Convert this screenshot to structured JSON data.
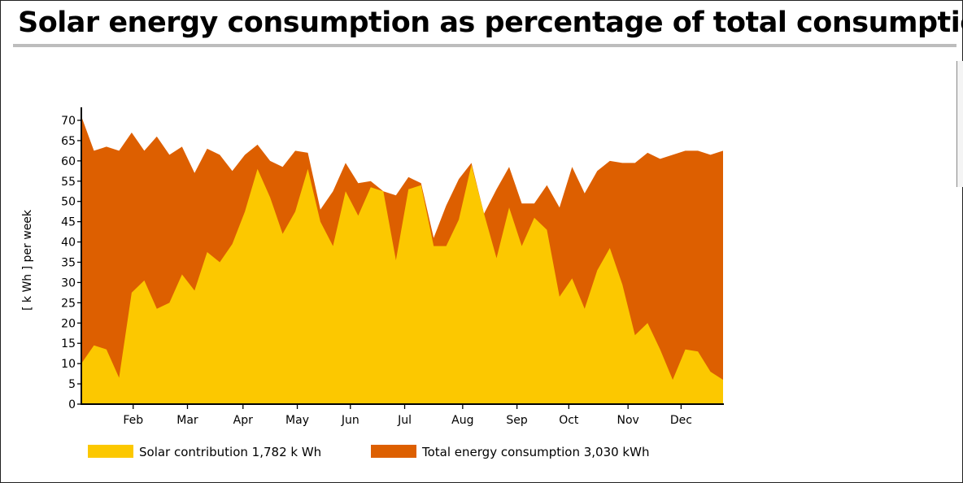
{
  "title": "Solar energy consumption as percentage of total consumption",
  "chart_data": {
    "type": "area",
    "title": "Solar energy consumption as percentage of total consumption",
    "xlabel": "",
    "ylabel": "[ k Wh ]  per week",
    "ylim": [
      0,
      70
    ],
    "yticks": [
      0,
      5,
      10,
      15,
      20,
      25,
      30,
      35,
      40,
      45,
      50,
      55,
      60,
      65,
      70
    ],
    "weeks": [
      1,
      53
    ],
    "month_ticks": [
      {
        "label": "Feb",
        "week": 5.2
      },
      {
        "label": "Mar",
        "week": 9.6
      },
      {
        "label": "Apr",
        "week": 14.1
      },
      {
        "label": "May",
        "week": 18.5
      },
      {
        "label": "Jun",
        "week": 22.8
      },
      {
        "label": "Jul",
        "week": 27.2
      },
      {
        "label": "Aug",
        "week": 31.9
      },
      {
        "label": "Sep",
        "week": 36.3
      },
      {
        "label": "Oct",
        "week": 40.5
      },
      {
        "label": "Nov",
        "week": 45.3
      },
      {
        "label": "Dec",
        "week": 49.6
      }
    ],
    "series": [
      {
        "name": "Total energy consumption",
        "legend": "Total energy consumption 3,030 kWh",
        "color": "#dd5f00",
        "values": [
          71,
          62.5,
          63.5,
          62.5,
          67,
          62.5,
          66,
          61.5,
          63.5,
          57,
          63,
          61.5,
          57.5,
          61.5,
          64,
          60,
          58.5,
          62.5,
          62,
          48,
          52.5,
          59.5,
          54.5,
          55,
          52.5,
          51.5,
          56,
          54.5,
          41,
          49,
          55.5,
          59.5,
          47,
          53,
          58.5,
          49.5,
          49.5,
          54,
          48.5,
          58.5,
          52,
          57.5,
          60,
          59.5,
          59.5,
          62,
          60.5,
          61.5,
          62.5,
          62.5,
          61.5,
          62.5
        ]
      },
      {
        "name": "Solar contribution",
        "legend": "Solar contribution 1,782 k Wh",
        "color": "#fcc800",
        "values": [
          10,
          14.5,
          13.5,
          6.5,
          27.5,
          30.5,
          23.5,
          25,
          32,
          28,
          37.5,
          35,
          39.5,
          47.5,
          58,
          51,
          42,
          47.5,
          58,
          45,
          39,
          52.5,
          46.5,
          53.5,
          52.5,
          35.5,
          53,
          54,
          39,
          39,
          45.5,
          59,
          47,
          36,
          48.5,
          39,
          46,
          43,
          26.5,
          31,
          23.5,
          33,
          38.5,
          29.5,
          17,
          20,
          13.5,
          6,
          13.5,
          13,
          8,
          6
        ]
      }
    ]
  }
}
